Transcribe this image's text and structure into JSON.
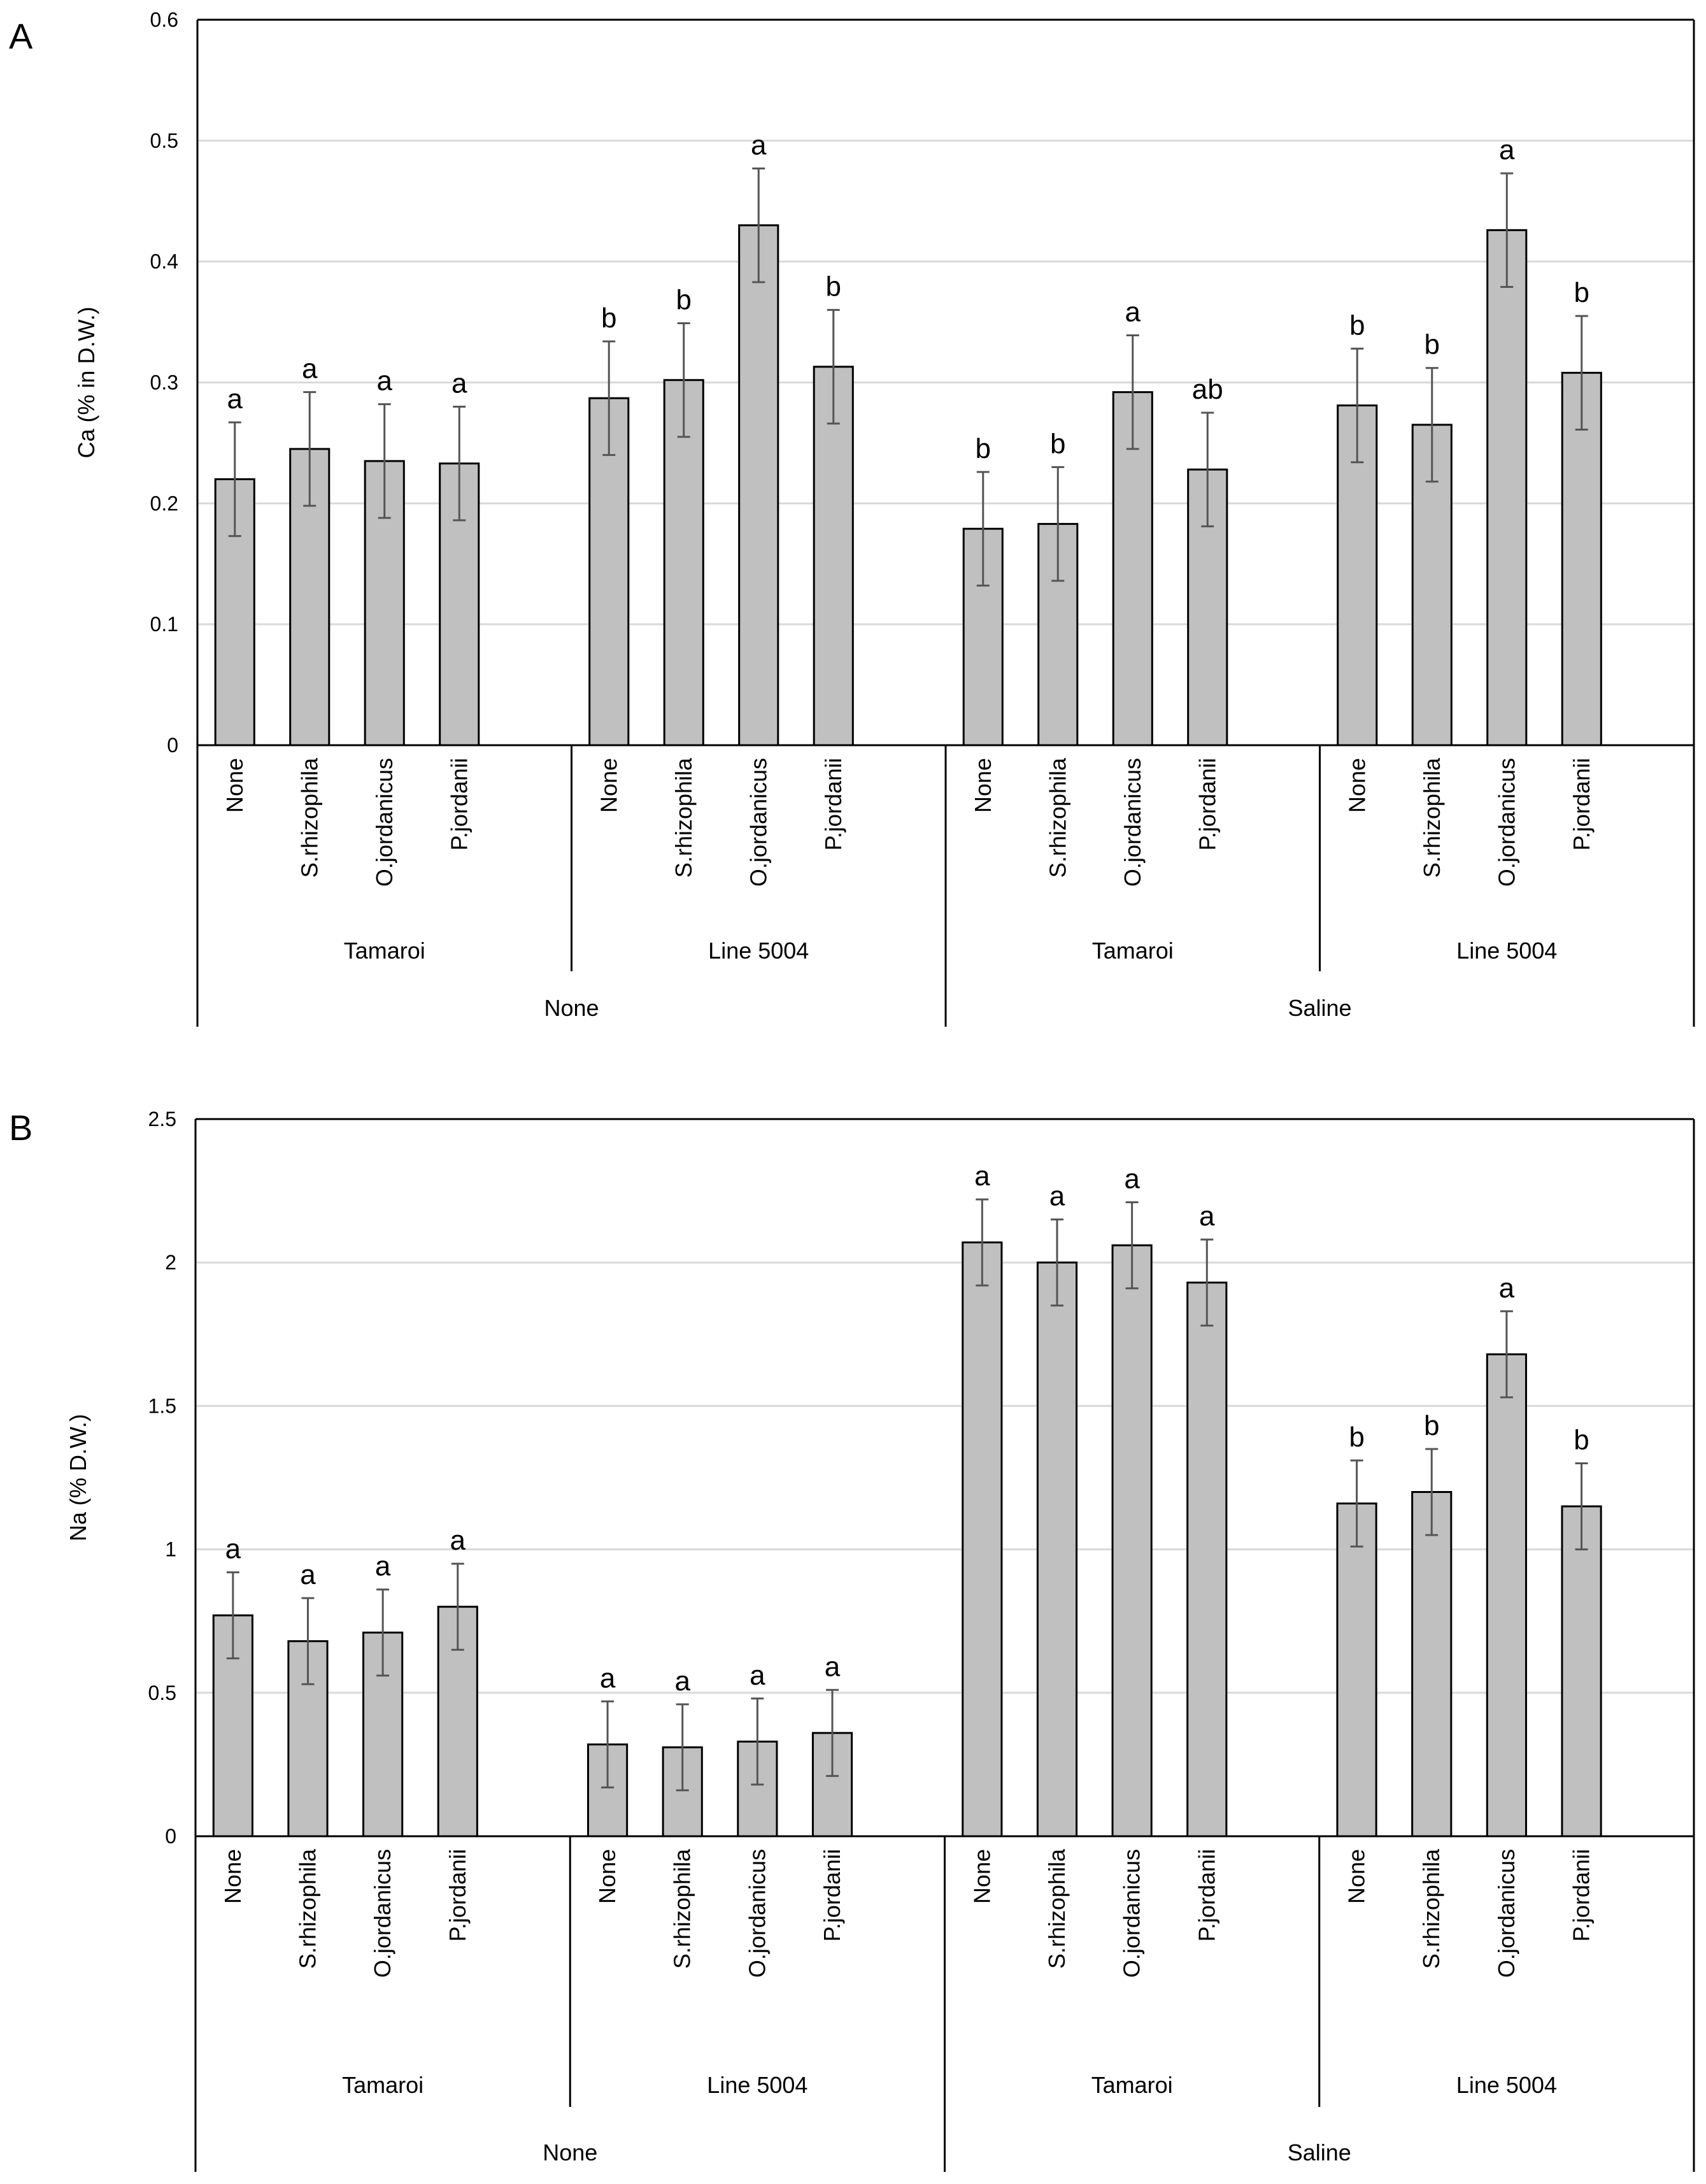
{
  "figure": {
    "panels": [
      "A",
      "B"
    ]
  },
  "chart_data": [
    {
      "panel": "A",
      "type": "bar",
      "title": "",
      "ylabel": "Ca (% in D.W.)",
      "xlabel": "",
      "ylim": [
        0,
        0.6
      ],
      "yticks": [
        "0",
        "0.1",
        "0.2",
        "0.3",
        "0.4",
        "0.5",
        "0.6"
      ],
      "grid": true,
      "bar_color": "#c0c0c0",
      "categories": [
        "None",
        "S.rhizophila",
        "O.jordanicus",
        "P.jordanii",
        "None",
        "S.rhizophila",
        "O.jordanicus",
        "P.jordanii",
        "None",
        "S.rhizophila",
        "O.jordanicus",
        "P.jordanii",
        "None",
        "S.rhizophila",
        "O.jordanicus",
        "P.jordanii"
      ],
      "values": [
        0.22,
        0.245,
        0.235,
        0.233,
        0.287,
        0.302,
        0.43,
        0.313,
        0.179,
        0.183,
        0.292,
        0.228,
        0.281,
        0.265,
        0.426,
        0.308
      ],
      "errors": [
        0.047,
        0.047,
        0.047,
        0.047,
        0.047,
        0.047,
        0.047,
        0.047,
        0.047,
        0.047,
        0.047,
        0.047,
        0.047,
        0.047,
        0.047,
        0.047
      ],
      "labels": [
        "a",
        "a",
        "a",
        "a",
        "b",
        "b",
        "a",
        "b",
        "b",
        "b",
        "a",
        "ab",
        "b",
        "b",
        "a",
        "b"
      ],
      "cultivars": [
        "Tamaroi",
        "Line 5004",
        "Tamaroi",
        "Line 5004"
      ],
      "conditions": [
        "None",
        "Saline"
      ]
    },
    {
      "panel": "B",
      "type": "bar",
      "title": "",
      "ylabel": "Na (% D.W.)",
      "xlabel": "",
      "ylim": [
        0,
        2.5
      ],
      "yticks": [
        "0",
        "0.5",
        "1",
        "1.5",
        "2",
        "2.5"
      ],
      "grid": true,
      "bar_color": "#c0c0c0",
      "categories": [
        "None",
        "S.rhizophila",
        "O.jordanicus",
        "P.jordanii",
        "None",
        "S.rhizophila",
        "O.jordanicus",
        "P.jordanii",
        "None",
        "S.rhizophila",
        "O.jordanicus",
        "P.jordanii",
        "None",
        "S.rhizophila",
        "O.jordanicus",
        "P.jordanii"
      ],
      "values": [
        0.77,
        0.68,
        0.71,
        0.8,
        0.32,
        0.31,
        0.33,
        0.36,
        2.07,
        2.0,
        2.06,
        1.93,
        1.16,
        1.2,
        1.68,
        1.15
      ],
      "errors": [
        0.15,
        0.15,
        0.15,
        0.15,
        0.15,
        0.15,
        0.15,
        0.15,
        0.15,
        0.15,
        0.15,
        0.15,
        0.15,
        0.15,
        0.15,
        0.15
      ],
      "labels": [
        "a",
        "a",
        "a",
        "a",
        "a",
        "a",
        "a",
        "a",
        "a",
        "a",
        "a",
        "a",
        "b",
        "b",
        "a",
        "b"
      ],
      "cultivars": [
        "Tamaroi",
        "Line 5004",
        "Tamaroi",
        "Line 5004"
      ],
      "conditions": [
        "None",
        "Saline"
      ]
    }
  ]
}
